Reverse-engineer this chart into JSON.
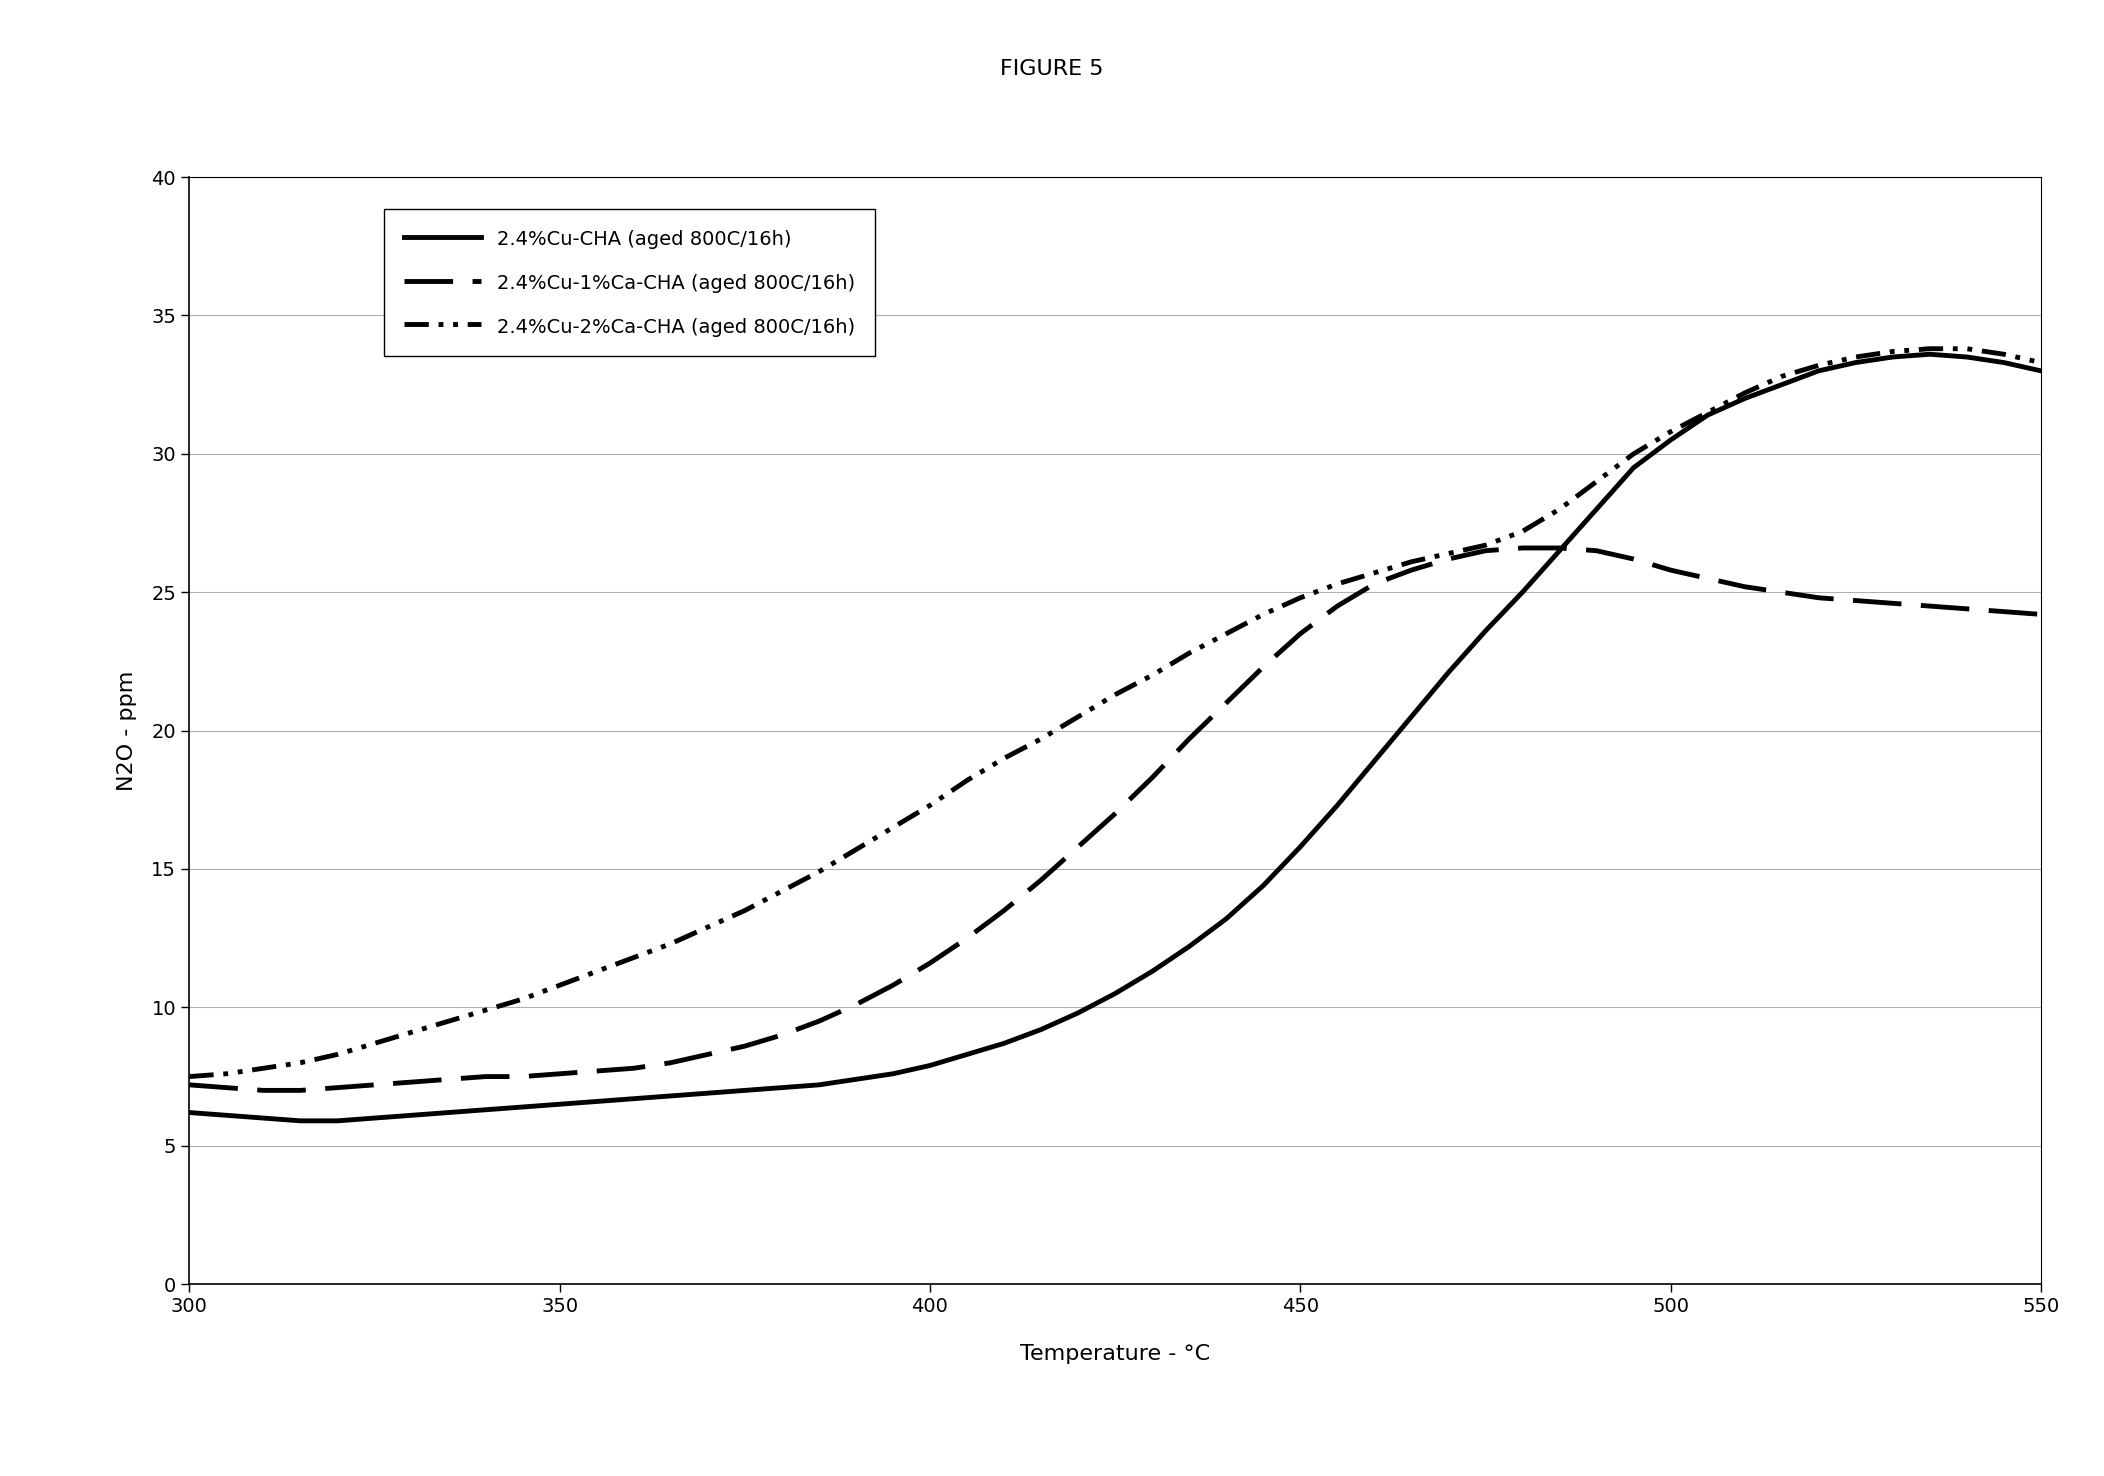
{
  "title": "FIGURE 5",
  "xlabel": "Temperature - °C",
  "ylabel": "N2O - ppm",
  "xlim": [
    300,
    550
  ],
  "ylim": [
    0,
    40
  ],
  "xticks": [
    300,
    350,
    400,
    450,
    500,
    550
  ],
  "yticks": [
    0,
    5,
    10,
    15,
    20,
    25,
    30,
    35,
    40
  ],
  "legend_labels": [
    "2.4%Cu-CHA (aged 800C/16h)",
    "2.4%Cu-1%Ca-CHA (aged 800C/16h)",
    "2.4%Cu-2%Ca-CHA (aged 800C/16h)"
  ],
  "curve1_x": [
    300,
    305,
    310,
    315,
    320,
    325,
    330,
    335,
    340,
    345,
    350,
    355,
    360,
    365,
    370,
    375,
    380,
    385,
    390,
    395,
    400,
    405,
    410,
    415,
    420,
    425,
    430,
    435,
    440,
    445,
    450,
    455,
    460,
    465,
    470,
    475,
    480,
    485,
    490,
    495,
    500,
    505,
    510,
    515,
    520,
    525,
    530,
    535,
    540,
    545,
    550
  ],
  "curve1_y": [
    6.2,
    6.1,
    6.0,
    5.9,
    5.9,
    6.0,
    6.1,
    6.2,
    6.3,
    6.4,
    6.5,
    6.6,
    6.7,
    6.8,
    6.9,
    7.0,
    7.1,
    7.2,
    7.4,
    7.6,
    7.9,
    8.3,
    8.7,
    9.2,
    9.8,
    10.5,
    11.3,
    12.2,
    13.2,
    14.4,
    15.8,
    17.3,
    18.9,
    20.5,
    22.1,
    23.6,
    25.0,
    26.5,
    28.0,
    29.5,
    30.5,
    31.4,
    32.0,
    32.5,
    33.0,
    33.3,
    33.5,
    33.6,
    33.5,
    33.3,
    33.0
  ],
  "curve2_x": [
    300,
    305,
    310,
    315,
    320,
    325,
    330,
    335,
    340,
    345,
    350,
    355,
    360,
    365,
    370,
    375,
    380,
    385,
    390,
    395,
    400,
    405,
    410,
    415,
    420,
    425,
    430,
    435,
    440,
    445,
    450,
    455,
    460,
    465,
    470,
    475,
    480,
    485,
    490,
    495,
    500,
    505,
    510,
    515,
    520,
    525,
    530,
    535,
    540,
    545,
    550
  ],
  "curve2_y": [
    7.2,
    7.1,
    7.0,
    7.0,
    7.1,
    7.2,
    7.3,
    7.4,
    7.5,
    7.5,
    7.6,
    7.7,
    7.8,
    8.0,
    8.3,
    8.6,
    9.0,
    9.5,
    10.1,
    10.8,
    11.6,
    12.5,
    13.5,
    14.6,
    15.8,
    17.0,
    18.3,
    19.7,
    21.0,
    22.3,
    23.5,
    24.5,
    25.3,
    25.8,
    26.2,
    26.5,
    26.6,
    26.6,
    26.5,
    26.2,
    25.8,
    25.5,
    25.2,
    25.0,
    24.8,
    24.7,
    24.6,
    24.5,
    24.4,
    24.3,
    24.2
  ],
  "curve3_x": [
    300,
    305,
    310,
    315,
    320,
    325,
    330,
    335,
    340,
    345,
    350,
    355,
    360,
    365,
    370,
    375,
    380,
    385,
    390,
    395,
    400,
    405,
    410,
    415,
    420,
    425,
    430,
    435,
    440,
    445,
    450,
    455,
    460,
    465,
    470,
    475,
    480,
    485,
    490,
    495,
    500,
    505,
    510,
    515,
    520,
    525,
    530,
    535,
    540,
    545,
    550
  ],
  "curve3_y": [
    7.5,
    7.6,
    7.8,
    8.0,
    8.3,
    8.7,
    9.1,
    9.5,
    9.9,
    10.3,
    10.8,
    11.3,
    11.8,
    12.3,
    12.9,
    13.5,
    14.2,
    14.9,
    15.7,
    16.5,
    17.3,
    18.2,
    19.0,
    19.7,
    20.5,
    21.3,
    22.0,
    22.8,
    23.5,
    24.2,
    24.8,
    25.3,
    25.7,
    26.1,
    26.4,
    26.7,
    27.2,
    28.0,
    29.0,
    30.0,
    30.8,
    31.5,
    32.2,
    32.8,
    33.2,
    33.5,
    33.7,
    33.8,
    33.8,
    33.6,
    33.3
  ],
  "background_color": "#ffffff",
  "grid_color": "#b0b0b0",
  "title_fontsize": 16,
  "axis_label_fontsize": 16,
  "tick_fontsize": 14,
  "legend_fontsize": 14,
  "linewidth": 3.5
}
